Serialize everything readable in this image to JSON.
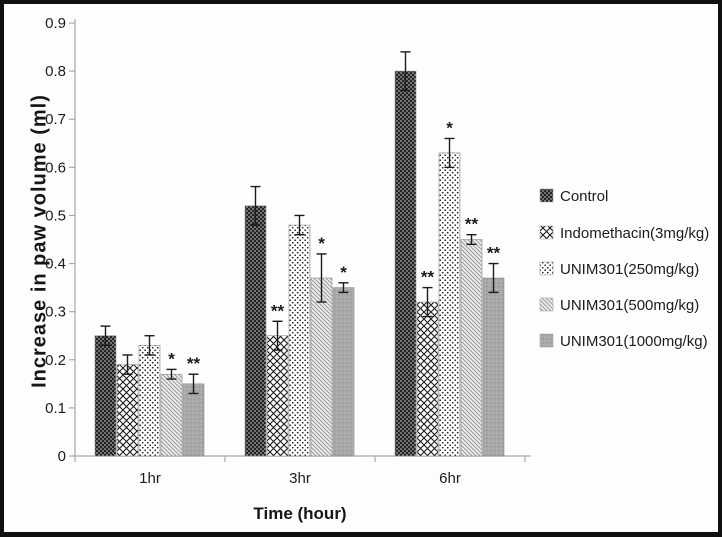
{
  "chart_data": {
    "type": "bar",
    "title": "",
    "xlabel": "Time (hour)",
    "ylabel": "Increase in paw volume (ml)",
    "ylim": [
      0,
      0.9
    ],
    "ytick_step": 0.1,
    "ytick_labels": [
      "0",
      "0.1",
      "0.2",
      "0.3",
      "0.4",
      "0.5",
      "0.6",
      "0.7",
      "0.8",
      "0.9"
    ],
    "categories": [
      "1hr",
      "3hr",
      "6hr"
    ],
    "series": [
      {
        "name": "Control",
        "pattern": "black-dotted",
        "values": [
          0.25,
          0.52,
          0.8
        ],
        "errors": [
          0.02,
          0.04,
          0.04
        ],
        "significance": [
          "",
          "",
          ""
        ]
      },
      {
        "name": "Indomethacin(3mg/kg)",
        "pattern": "black-crosshatch",
        "values": [
          0.19,
          0.25,
          0.32
        ],
        "errors": [
          0.02,
          0.03,
          0.03
        ],
        "significance": [
          "",
          "**",
          "**"
        ]
      },
      {
        "name": "UNIM301(250mg/kg)",
        "pattern": "white-dotted",
        "values": [
          0.23,
          0.48,
          0.63
        ],
        "errors": [
          0.02,
          0.02,
          0.03
        ],
        "significance": [
          "",
          "",
          "*"
        ]
      },
      {
        "name": "UNIM301(500mg/kg)",
        "pattern": "gray-diagonal-hatch",
        "values": [
          0.17,
          0.37,
          0.45
        ],
        "errors": [
          0.01,
          0.05,
          0.01
        ],
        "significance": [
          "*",
          "*",
          "**"
        ]
      },
      {
        "name": "UNIM301(1000mg/kg)",
        "pattern": "gray-dotted",
        "values": [
          0.15,
          0.35,
          0.37
        ],
        "errors": [
          0.02,
          0.01,
          0.03
        ],
        "significance": [
          "**",
          "*",
          "**"
        ]
      }
    ],
    "legend_position": "right",
    "grid": false,
    "error_bars": true,
    "colors": {
      "bar_dark": "#242424",
      "bar_gray": "#a8a8a8",
      "hatch_line": "#1a1a1a",
      "diag_line": "#9b9b9b",
      "light_fill": "#ededed",
      "axis_line": "#a9a9a9",
      "text": "#1c1c1c",
      "error_bar": "#1a1a1a"
    }
  }
}
